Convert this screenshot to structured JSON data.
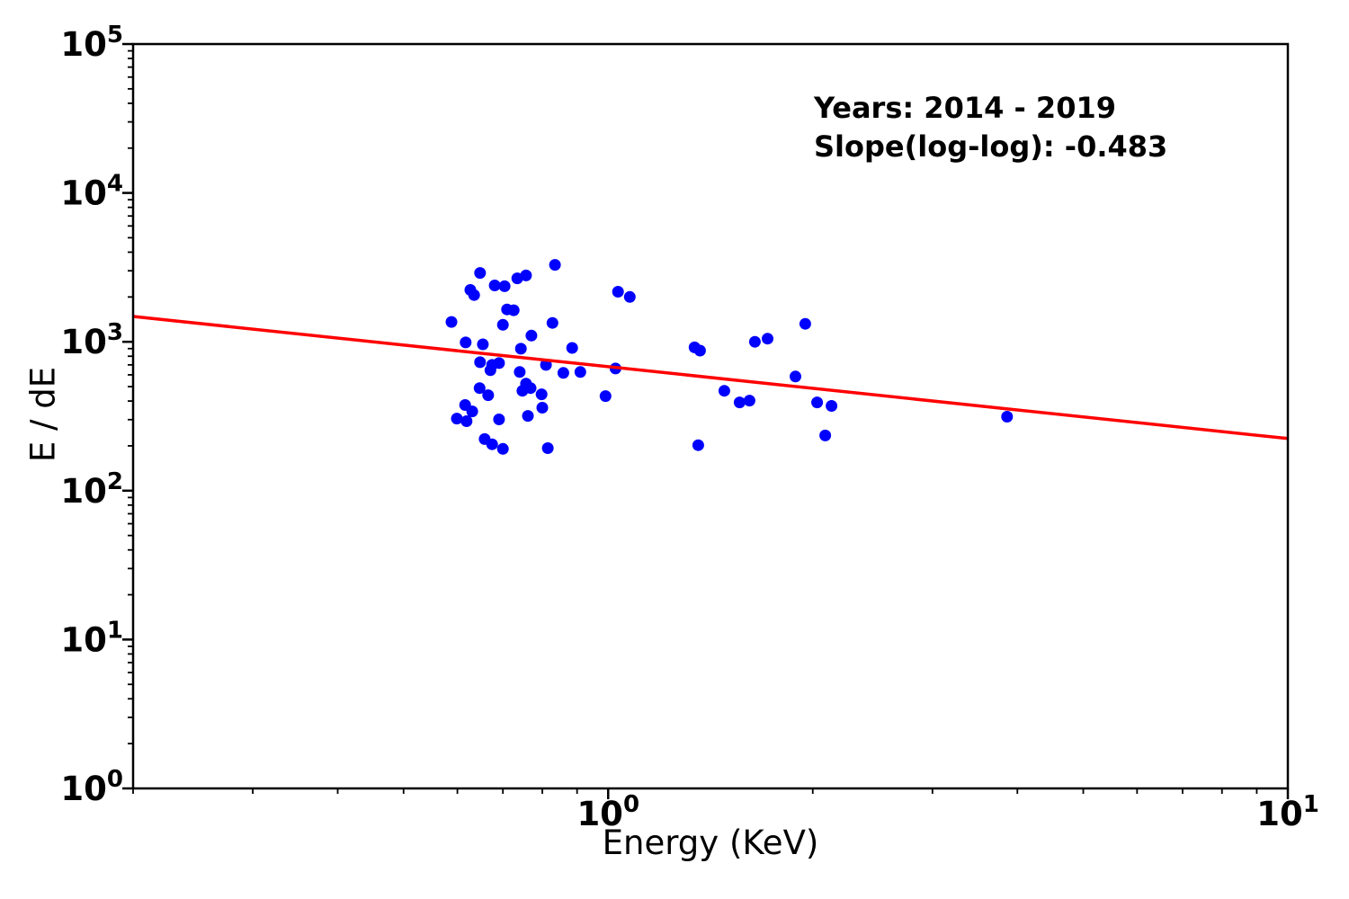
{
  "chart_data": {
    "type": "scatter",
    "title": "",
    "xlabel": "Energy (KeV)",
    "ylabel": "E / dE",
    "x_scale": "log",
    "y_scale": "log",
    "xlim": [
      0.2,
      10
    ],
    "ylim": [
      1,
      100000
    ],
    "grid": false,
    "legend": "none",
    "annotation": {
      "line1": "Years: 2014 - 2019",
      "line2": "Slope(log-log): -0.483"
    },
    "years": "2014 - 2019",
    "slope_loglog": -0.483,
    "marker_color": "#0000ff",
    "fit_line_color": "#ff0000",
    "axis_color": "#000000",
    "x_major_ticks": [
      {
        "value": 1,
        "base": "10",
        "exp": "0"
      },
      {
        "value": 10,
        "base": "10",
        "exp": "1"
      }
    ],
    "y_major_ticks": [
      {
        "value": 1,
        "base": "10",
        "exp": "0"
      },
      {
        "value": 10,
        "base": "10",
        "exp": "1"
      },
      {
        "value": 100,
        "base": "10",
        "exp": "2"
      },
      {
        "value": 1000,
        "base": "10",
        "exp": "3"
      },
      {
        "value": 10000,
        "base": "10",
        "exp": "4"
      },
      {
        "value": 100000,
        "base": "10",
        "exp": "5"
      }
    ],
    "fit_line": {
      "x": [
        0.2,
        10
      ],
      "y": [
        1480,
        224
      ]
    },
    "points": [
      [
        0.588,
        1360
      ],
      [
        0.599,
        305
      ],
      [
        0.616,
        376
      ],
      [
        0.617,
        990
      ],
      [
        0.619,
        293
      ],
      [
        0.627,
        2230
      ],
      [
        0.635,
        2060
      ],
      [
        0.631,
        341
      ],
      [
        0.647,
        489
      ],
      [
        0.648,
        2900
      ],
      [
        0.648,
        729
      ],
      [
        0.654,
        962
      ],
      [
        0.658,
        222
      ],
      [
        0.666,
        438
      ],
      [
        0.671,
        644
      ],
      [
        0.675,
        700
      ],
      [
        0.675,
        205
      ],
      [
        0.681,
        2390
      ],
      [
        0.691,
        719
      ],
      [
        0.691,
        301
      ],
      [
        0.7,
        1300
      ],
      [
        0.7,
        191
      ],
      [
        0.704,
        2360
      ],
      [
        0.71,
        1650
      ],
      [
        0.726,
        1630
      ],
      [
        0.735,
        2670
      ],
      [
        0.741,
        627
      ],
      [
        0.744,
        898
      ],
      [
        0.748,
        469
      ],
      [
        0.757,
        2790
      ],
      [
        0.757,
        524
      ],
      [
        0.762,
        318
      ],
      [
        0.769,
        489
      ],
      [
        0.771,
        1100
      ],
      [
        0.798,
        444
      ],
      [
        0.8,
        361
      ],
      [
        0.81,
        700
      ],
      [
        0.815,
        193
      ],
      [
        0.828,
        1340
      ],
      [
        0.835,
        3290
      ],
      [
        0.859,
        618
      ],
      [
        0.885,
        910
      ],
      [
        0.91,
        627
      ],
      [
        0.991,
        432
      ],
      [
        1.025,
        662
      ],
      [
        1.034,
        2170
      ],
      [
        1.076,
        2000
      ],
      [
        1.34,
        917
      ],
      [
        1.365,
        873
      ],
      [
        1.357,
        202
      ],
      [
        1.482,
        469
      ],
      [
        1.561,
        392
      ],
      [
        1.614,
        403
      ],
      [
        1.644,
        1000
      ],
      [
        1.716,
        1050
      ],
      [
        1.886,
        585
      ],
      [
        1.95,
        1320
      ],
      [
        2.03,
        392
      ],
      [
        2.086,
        235
      ],
      [
        2.131,
        371
      ],
      [
        3.863,
        314
      ]
    ]
  }
}
